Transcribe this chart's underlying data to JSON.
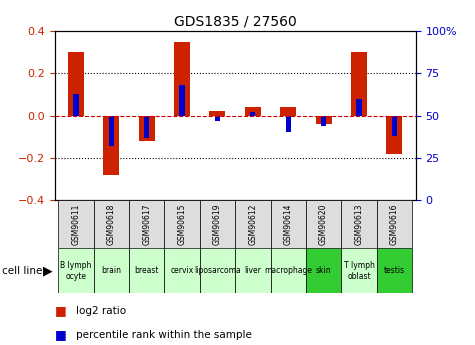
{
  "title": "GDS1835 / 27560",
  "samples": [
    "GSM90611",
    "GSM90618",
    "GSM90617",
    "GSM90615",
    "GSM90619",
    "GSM90612",
    "GSM90614",
    "GSM90620",
    "GSM90613",
    "GSM90616"
  ],
  "cell_lines": [
    "B lymph\nocyte",
    "brain",
    "breast",
    "cervix",
    "liposarcoma\n",
    "liver",
    "macrophage\n",
    "skin",
    "T lymph\noblast",
    "testis"
  ],
  "cell_line_colors": [
    "#ccffcc",
    "#ccffcc",
    "#ccffcc",
    "#ccffcc",
    "#ccffcc",
    "#ccffcc",
    "#ccffcc",
    "#33cc33",
    "#ccffcc",
    "#33cc33"
  ],
  "log2_ratio": [
    0.3,
    -0.28,
    -0.12,
    0.35,
    0.02,
    0.04,
    0.04,
    -0.04,
    0.3,
    -0.18
  ],
  "percentile_rank": [
    63,
    32,
    37,
    68,
    47,
    52,
    40,
    44,
    60,
    38
  ],
  "ylim": [
    -0.4,
    0.4
  ],
  "y2lim": [
    0,
    100
  ],
  "yticks": [
    -0.4,
    -0.2,
    0.0,
    0.2,
    0.4
  ],
  "y2ticks": [
    0,
    25,
    50,
    75,
    100
  ],
  "y2ticklabels": [
    "0",
    "25",
    "50",
    "75",
    "100%"
  ],
  "bar_color": "#cc2200",
  "rank_color": "#0000cc",
  "zero_line_color": "#cc0000",
  "dotted_line_color": "#000000",
  "bg_color": "white",
  "sample_bg_color": "#dddddd",
  "bar_width": 0.45,
  "rank_bar_width": 0.15
}
